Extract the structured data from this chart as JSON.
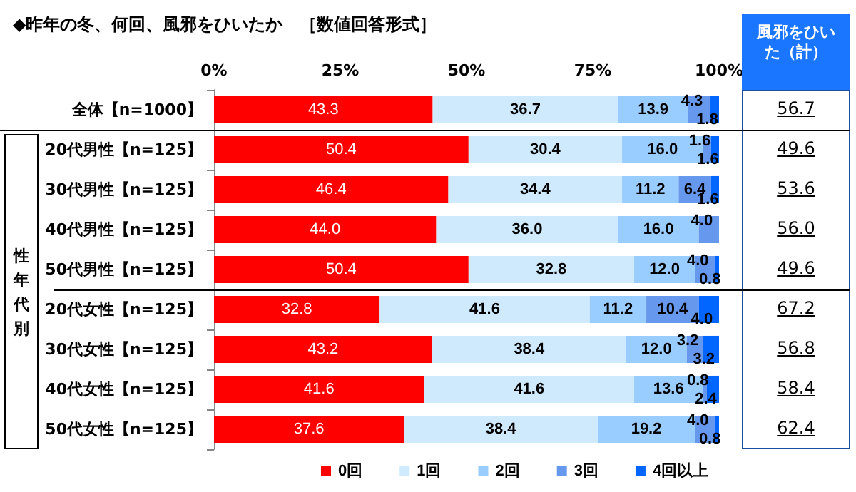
{
  "chart_data": {
    "type": "bar",
    "orientation": "horizontal",
    "stacked": true,
    "title": "◆昨年の冬、何回、風邪をひいたか　［数値回答形式］",
    "categories": [
      "全体【n=1000】",
      "20代男性【n=125】",
      "30代男性【n=125】",
      "40代男性【n=125】",
      "50代男性【n=125】",
      "20代女性【n=125】",
      "30代女性【n=125】",
      "40代女性【n=125】",
      "50代女性【n=125】"
    ],
    "series": [
      {
        "name": "0回",
        "color": "#ff0000",
        "values": [
          43.3,
          50.4,
          46.4,
          44.0,
          50.4,
          32.8,
          43.2,
          41.6,
          37.6
        ],
        "value_labels": [
          "43.3",
          "50.4",
          "46.4",
          "44.0",
          "50.4",
          "32.8",
          "43.2",
          "41.6",
          "37.6"
        ]
      },
      {
        "name": "1回",
        "color": "#cfeafc",
        "values": [
          36.7,
          30.4,
          34.4,
          36.0,
          32.8,
          41.6,
          38.4,
          41.6,
          38.4
        ],
        "value_labels": [
          "36.7",
          "30.4",
          "34.4",
          "36.0",
          "32.8",
          "41.6",
          "38.4",
          "41.6",
          "38.4"
        ]
      },
      {
        "name": "2回",
        "color": "#99ccff",
        "values": [
          13.9,
          16.0,
          11.2,
          16.0,
          12.0,
          11.2,
          12.0,
          13.6,
          19.2
        ],
        "value_labels": [
          "13.9",
          "16.0",
          "11.2",
          "16.0",
          "12.0",
          "11.2",
          "12.0",
          "13.6",
          "19.2"
        ]
      },
      {
        "name": "3回",
        "color": "#6699ee",
        "values": [
          4.3,
          1.6,
          6.4,
          4.0,
          4.0,
          10.4,
          3.2,
          0.8,
          4.0
        ],
        "value_labels": [
          "4.3",
          "1.6",
          "6.4",
          "4.0",
          "4.0",
          "10.4",
          "3.2",
          "0.8",
          "4.0"
        ]
      },
      {
        "name": "4回以上",
        "color": "#0066ff",
        "values": [
          1.8,
          1.6,
          1.6,
          null,
          0.8,
          4.0,
          3.2,
          2.4,
          0.8
        ],
        "value_labels": [
          "1.8",
          "1.6",
          "1.6",
          null,
          "0.8",
          "4.0",
          "3.2",
          "2.4",
          "0.8"
        ]
      }
    ],
    "xlim": [
      0,
      100
    ],
    "xticks": [
      {
        "value": 0,
        "label": "0%"
      },
      {
        "value": 25,
        "label": "25%"
      },
      {
        "value": 50,
        "label": "50%"
      },
      {
        "value": 75,
        "label": "75%"
      },
      {
        "value": 100,
        "label": "100%"
      }
    ],
    "grid": false,
    "legend": "bottom",
    "annotations": [
      "風邪をひいた（計）",
      "性年代別",
      "56.7",
      "49.6",
      "53.6",
      "56.0",
      "49.6",
      "67.2",
      "56.8",
      "58.4",
      "62.4"
    ]
  }
}
